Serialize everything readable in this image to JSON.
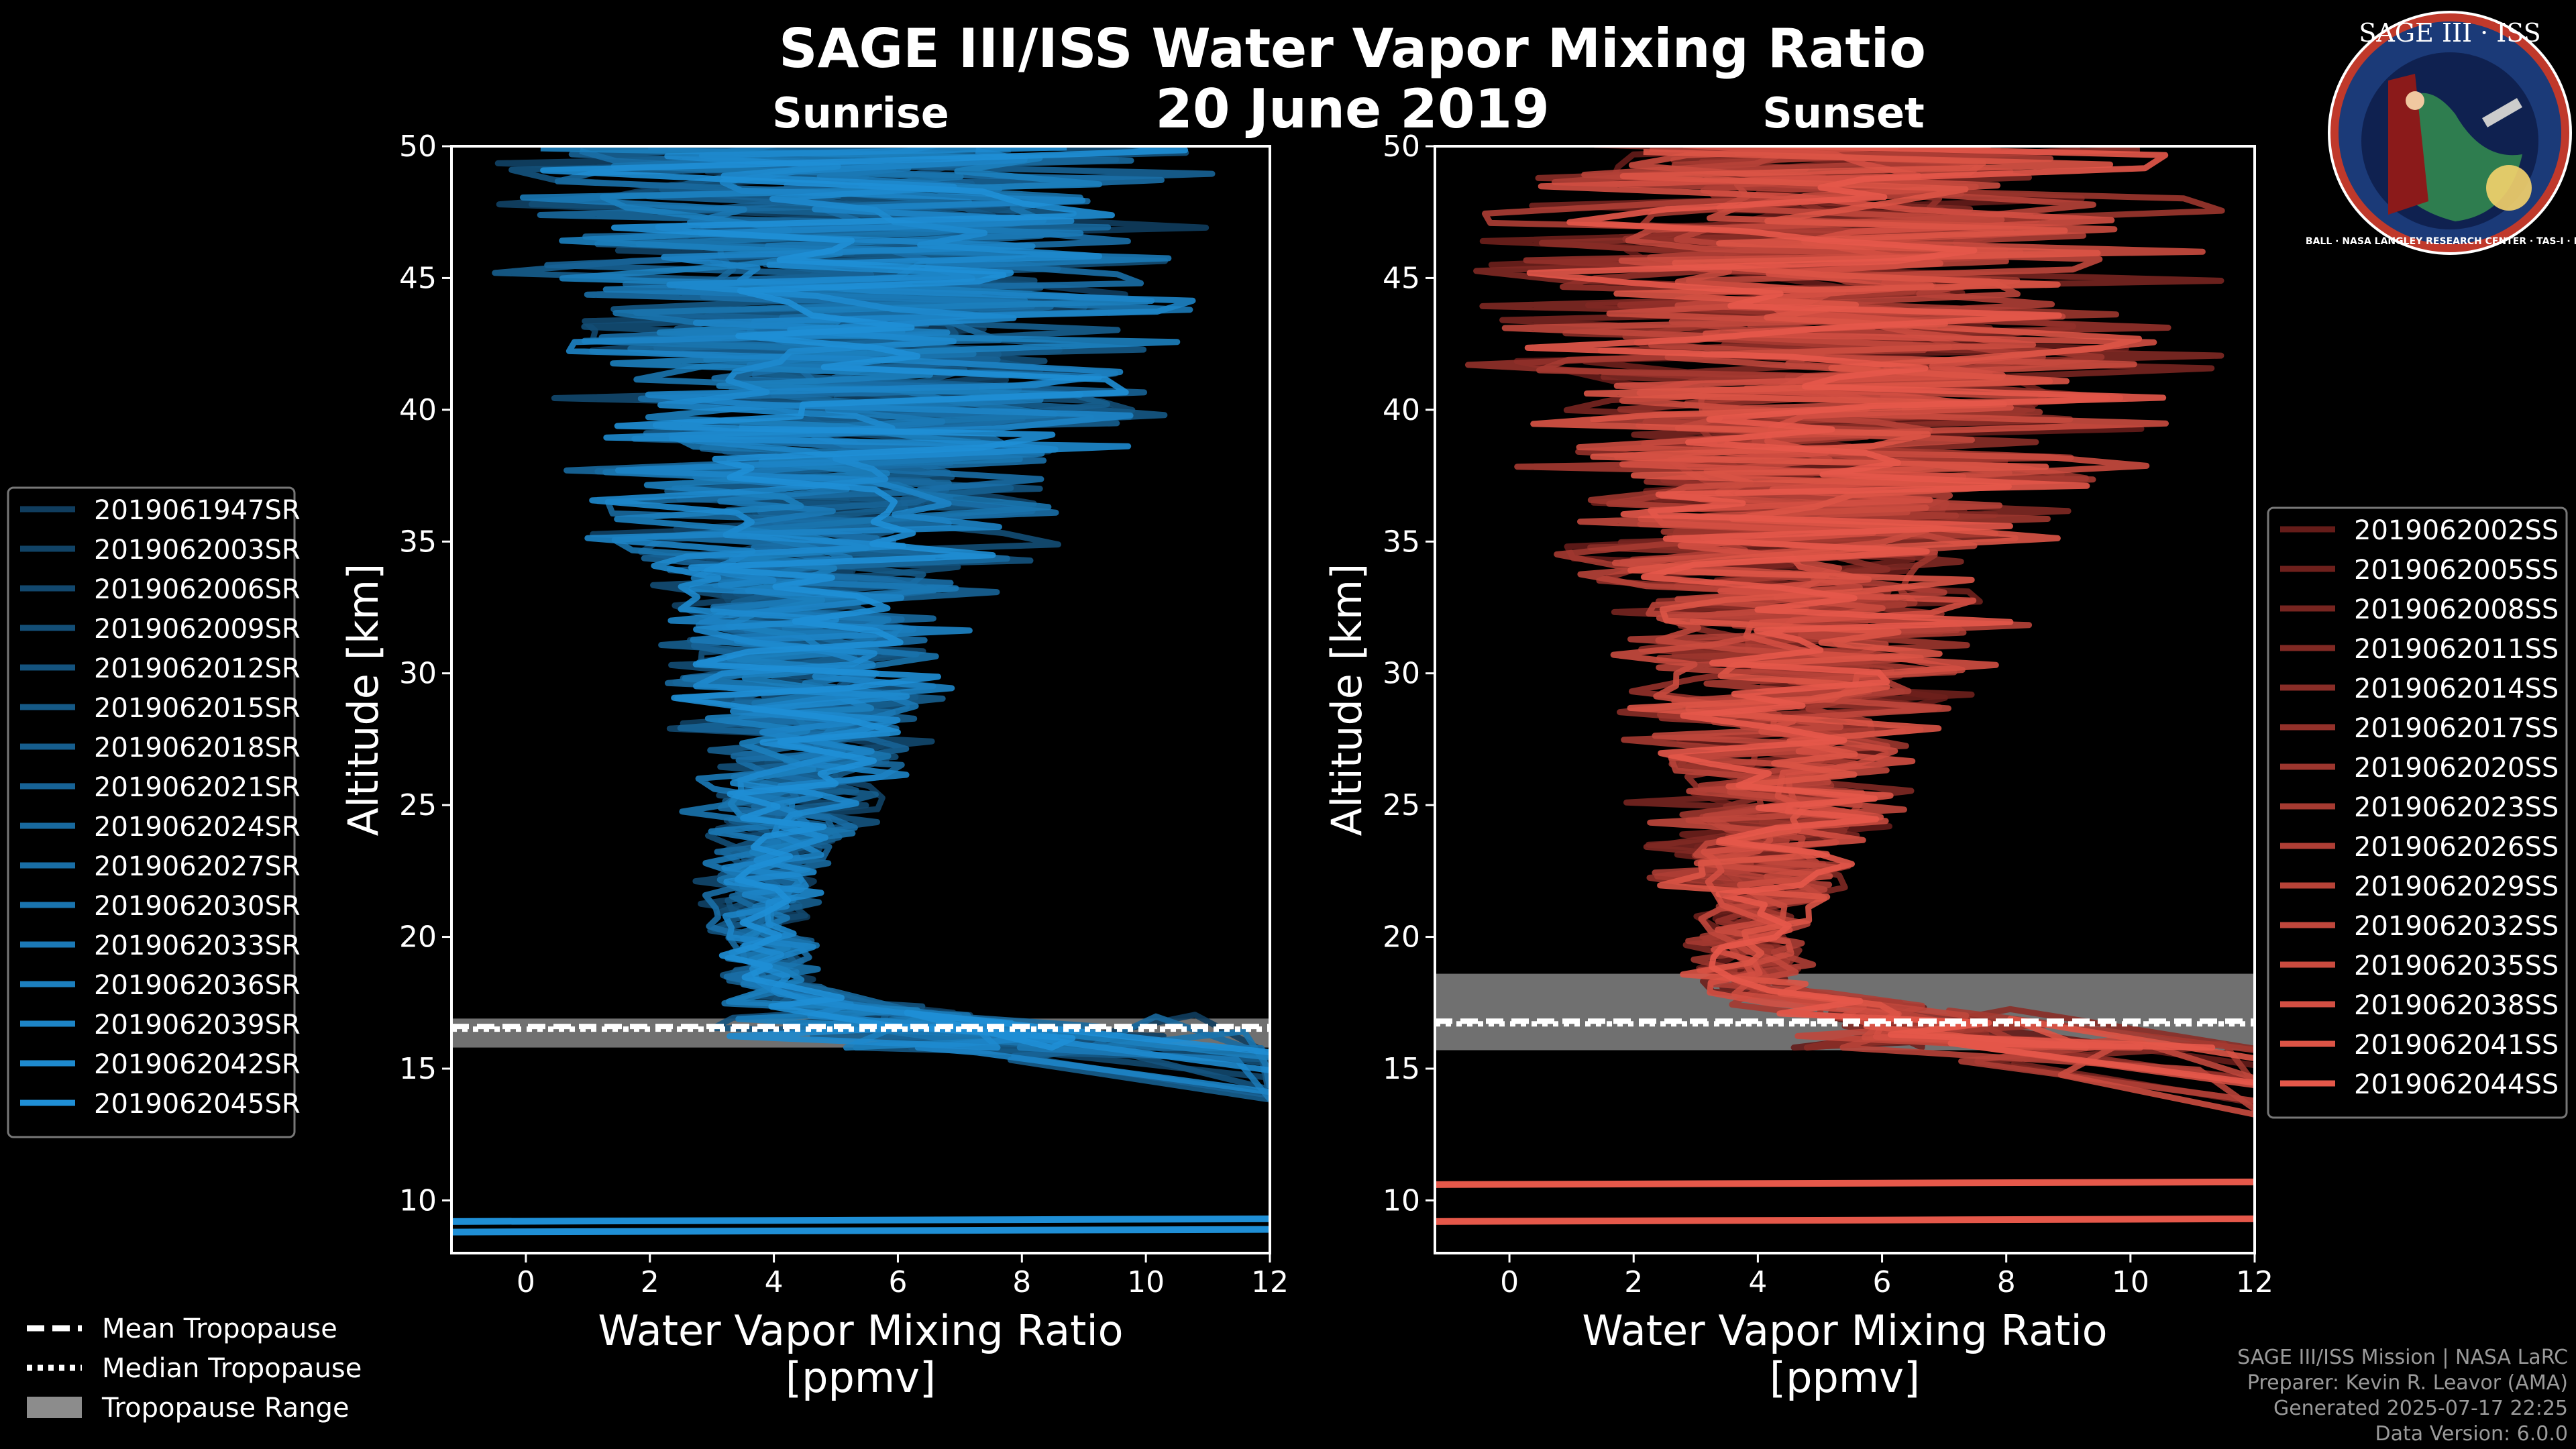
{
  "title": "SAGE III/ISS Water Vapor Mixing Ratio",
  "date": "20 June 2019",
  "colors": {
    "sunrise": "#1f8fd6",
    "sunset": "#e5584a",
    "background": "#000000",
    "tropopause_band": "#8c8c8c"
  },
  "logo": {
    "top_text": "SAGE III · ISS",
    "ring_text": "BALL · NASA LANGLEY RESEARCH CENTER · TAS-I · ESA"
  },
  "credits": {
    "line1": "SAGE III/ISS Mission | NASA LaRC",
    "line2": "Preparer: Kevin R. Leavor (AMA)",
    "line3": "Generated 2025-07-17 22:25",
    "line4": "Data Version: 6.0.0"
  },
  "tropo_legend": [
    "Mean Tropopause",
    "Median Tropopause",
    "Tropopause Range"
  ],
  "chart_data": [
    {
      "type": "line",
      "panel": "sunrise",
      "title": "Sunrise",
      "xlabel": "Water Vapor Mixing Ratio\n[ppmv]",
      "ylabel": "Altitude [km]",
      "xlim": [
        -1.2,
        12
      ],
      "ylim": [
        8,
        50
      ],
      "xticks": [
        0,
        2,
        4,
        6,
        8,
        10,
        12
      ],
      "yticks": [
        10,
        15,
        20,
        25,
        30,
        35,
        40,
        45,
        50
      ],
      "tropopause": {
        "mean": 16.6,
        "median": 16.5,
        "range": [
          15.8,
          16.9
        ]
      },
      "series_names": [
        "2019061947SR",
        "2019062003SR",
        "2019062006SR",
        "2019062009SR",
        "2019062012SR",
        "2019062015SR",
        "2019062018SR",
        "2019062021SR",
        "2019062024SR",
        "2019062027SR",
        "2019062030SR",
        "2019062033SR",
        "2019062036SR",
        "2019062039SR",
        "2019062042SR",
        "2019062045SR"
      ],
      "profile_envelope": {
        "altitude": [
          16,
          18,
          20,
          22,
          25,
          28,
          30,
          33,
          35,
          38,
          40,
          42,
          45,
          48,
          50
        ],
        "min": [
          2.8,
          3.0,
          2.9,
          2.6,
          2.4,
          2.2,
          1.8,
          1.5,
          0.5,
          -0.2,
          0.4,
          -1.2,
          -1.2,
          -1.2,
          -1.2
        ],
        "max": [
          12,
          5.0,
          4.8,
          5.2,
          6.0,
          6.8,
          7.2,
          7.8,
          9.0,
          10.0,
          11.5,
          12,
          12,
          12,
          12
        ]
      },
      "low_altitude_lines": [
        9.2,
        8.8
      ]
    },
    {
      "type": "line",
      "panel": "sunset",
      "title": "Sunset",
      "xlabel": "Water Vapor Mixing Ratio\n[ppmv]",
      "ylabel": "Altitude [km]",
      "xlim": [
        -1.2,
        12
      ],
      "ylim": [
        8,
        50
      ],
      "xticks": [
        0,
        2,
        4,
        6,
        8,
        10,
        12
      ],
      "yticks": [
        10,
        15,
        20,
        25,
        30,
        35,
        40,
        45,
        50
      ],
      "tropopause": {
        "mean": 16.8,
        "median": 16.7,
        "range": [
          15.7,
          18.6
        ]
      },
      "series_names": [
        "2019062002SS",
        "2019062005SS",
        "2019062008SS",
        "2019062011SS",
        "2019062014SS",
        "2019062017SS",
        "2019062020SS",
        "2019062023SS",
        "2019062026SS",
        "2019062029SS",
        "2019062032SS",
        "2019062035SS",
        "2019062038SS",
        "2019062041SS",
        "2019062044SS"
      ],
      "profile_envelope": {
        "altitude": [
          16,
          18,
          20,
          22,
          25,
          28,
          30,
          33,
          35,
          38,
          40,
          42,
          45,
          48,
          50
        ],
        "min": [
          3.0,
          2.8,
          2.5,
          2.2,
          1.8,
          1.5,
          1.2,
          0.8,
          -0.2,
          -0.4,
          -1.0,
          -1.2,
          -1.2,
          -1.2,
          -1.2
        ],
        "max": [
          12,
          5.2,
          5.0,
          5.8,
          6.8,
          7.5,
          8.0,
          8.8,
          10.0,
          10.8,
          11.8,
          12,
          12,
          12,
          12
        ]
      },
      "low_altitude_lines": [
        10.6,
        9.2
      ]
    }
  ]
}
